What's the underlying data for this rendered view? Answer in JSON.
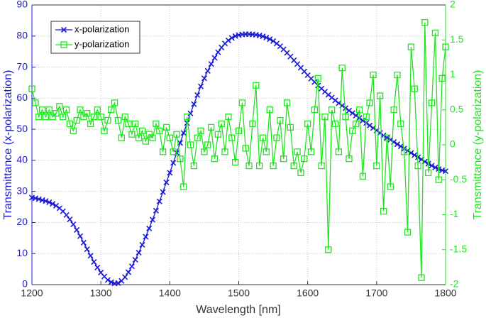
{
  "chart_data": {
    "type": "line",
    "x_label": "Wavelength [nm]",
    "y_label": "Transmittance (x-polarization)",
    "y2_label": "Transmittance (y-polarization)",
    "x": [
      1200,
      1205,
      1210,
      1215,
      1220,
      1225,
      1230,
      1235,
      1240,
      1245,
      1250,
      1255,
      1260,
      1265,
      1270,
      1275,
      1280,
      1285,
      1290,
      1295,
      1300,
      1305,
      1310,
      1315,
      1320,
      1325,
      1330,
      1335,
      1340,
      1345,
      1350,
      1355,
      1360,
      1365,
      1370,
      1375,
      1380,
      1385,
      1390,
      1395,
      1400,
      1405,
      1410,
      1415,
      1420,
      1425,
      1430,
      1435,
      1440,
      1445,
      1450,
      1455,
      1460,
      1465,
      1470,
      1475,
      1480,
      1485,
      1490,
      1495,
      1500,
      1505,
      1510,
      1515,
      1520,
      1525,
      1530,
      1535,
      1540,
      1545,
      1550,
      1555,
      1560,
      1565,
      1570,
      1575,
      1580,
      1585,
      1590,
      1595,
      1600,
      1605,
      1610,
      1615,
      1620,
      1625,
      1630,
      1635,
      1640,
      1645,
      1650,
      1655,
      1660,
      1665,
      1670,
      1675,
      1680,
      1685,
      1690,
      1695,
      1700,
      1705,
      1710,
      1715,
      1720,
      1725,
      1730,
      1735,
      1740,
      1745,
      1750,
      1755,
      1760,
      1765,
      1770,
      1775,
      1780,
      1785,
      1790,
      1795,
      1800
    ],
    "series": [
      {
        "name": "x-polarization",
        "color": "#1a1ad6",
        "marker": "x",
        "axis": "y",
        "values": [
          28,
          27.8,
          27.5,
          27.2,
          26.9,
          26.5,
          26,
          25.4,
          24.6,
          23.6,
          22.4,
          21,
          19.4,
          17.6,
          15.6,
          13.5,
          11.4,
          9.3,
          7.3,
          5.5,
          3.9,
          2.6,
          1.5,
          0.8,
          0.4,
          0.5,
          1.2,
          2.4,
          4,
          5.9,
          8,
          10.3,
          12.8,
          15.4,
          18.1,
          20.9,
          23.8,
          26.8,
          29.8,
          32.9,
          36,
          39.2,
          42.4,
          45.6,
          48.8,
          52,
          55.1,
          58.1,
          61,
          63.8,
          66.4,
          68.8,
          71,
          73,
          74.8,
          76.3,
          77.6,
          78.6,
          79.4,
          80,
          80.3,
          80.5,
          80.6,
          80.6,
          80.5,
          80.4,
          80.2,
          79.9,
          79.5,
          79,
          78.4,
          77.6,
          76.7,
          75.7,
          74.6,
          73.4,
          72.2,
          71,
          69.8,
          68.6,
          67.4,
          66.3,
          65.2,
          64.1,
          63.1,
          62.1,
          61.1,
          60.2,
          59.3,
          58.4,
          57.6,
          56.8,
          56,
          55.2,
          54.4,
          53.6,
          52.8,
          52,
          51.2,
          50.4,
          49.6,
          48.8,
          48,
          47.3,
          46.6,
          45.9,
          45.2,
          44.5,
          43.8,
          43.1,
          42.4,
          41.7,
          41,
          40.3,
          39.6,
          38.9,
          38.3,
          37.7,
          37.2,
          36.8,
          36.5
        ]
      },
      {
        "name": "y-polarization",
        "color": "#1ee61e",
        "marker": "square",
        "axis": "y2",
        "values": [
          0.8,
          0.6,
          0.4,
          0.5,
          0.4,
          0.5,
          0.4,
          0.45,
          0.55,
          0.4,
          0.5,
          0.3,
          0.2,
          0.35,
          0.5,
          0.4,
          0.45,
          0.3,
          0.4,
          0.5,
          0.4,
          0.2,
          0.35,
          0.5,
          0.6,
          0.35,
          0.1,
          0.4,
          0.3,
          0.15,
          0.3,
          0.1,
          0.2,
          0.05,
          0.15,
          0.1,
          0.3,
          0.2,
          -0.1,
          0.25,
          0.1,
          -0.1,
          0.15,
          -0.2,
          -0.6,
          0.4,
          0.0,
          -0.3,
          0.1,
          0.2,
          -0.1,
          0.0,
          0.25,
          -0.2,
          0.15,
          0.3,
          -0.1,
          0.4,
          0.1,
          -0.25,
          0.2,
          0.6,
          -0.05,
          -0.3,
          0.3,
          0.85,
          -0.3,
          0.1,
          -0.1,
          0.5,
          -0.3,
          0.1,
          0.35,
          -0.2,
          0.6,
          0.25,
          -0.3,
          -0.1,
          -0.4,
          -0.2,
          0.3,
          -0.1,
          0.5,
          0.95,
          -0.3,
          0.4,
          -1.5,
          0.5,
          0.3,
          -0.1,
          1.1,
          0.4,
          -0.2,
          0.2,
          0.3,
          0.5,
          -0.45,
          0.4,
          0.6,
          1.0,
          -0.3,
          0.7,
          -0.95,
          0.1,
          -0.6,
          0.5,
          1.0,
          0.3,
          -0.1,
          -1.25,
          1.4,
          0.8,
          -0.3,
          -1.9,
          1.75,
          -0.4,
          0.6,
          1.6,
          -0.5,
          0.95,
          1.4
        ]
      }
    ],
    "xlim": [
      1200,
      1800
    ],
    "xticks": [
      1200,
      1300,
      1400,
      1500,
      1600,
      1700,
      1800
    ],
    "ylim": [
      0,
      90
    ],
    "yticks": [
      0,
      10,
      20,
      30,
      40,
      50,
      60,
      70,
      80,
      90
    ],
    "y2lim": [
      -2,
      2
    ],
    "y2ticks": [
      -2,
      -1.5,
      -1,
      -0.5,
      0,
      0.5,
      1,
      1.5,
      2
    ],
    "grid": true,
    "legend": "upper left"
  }
}
